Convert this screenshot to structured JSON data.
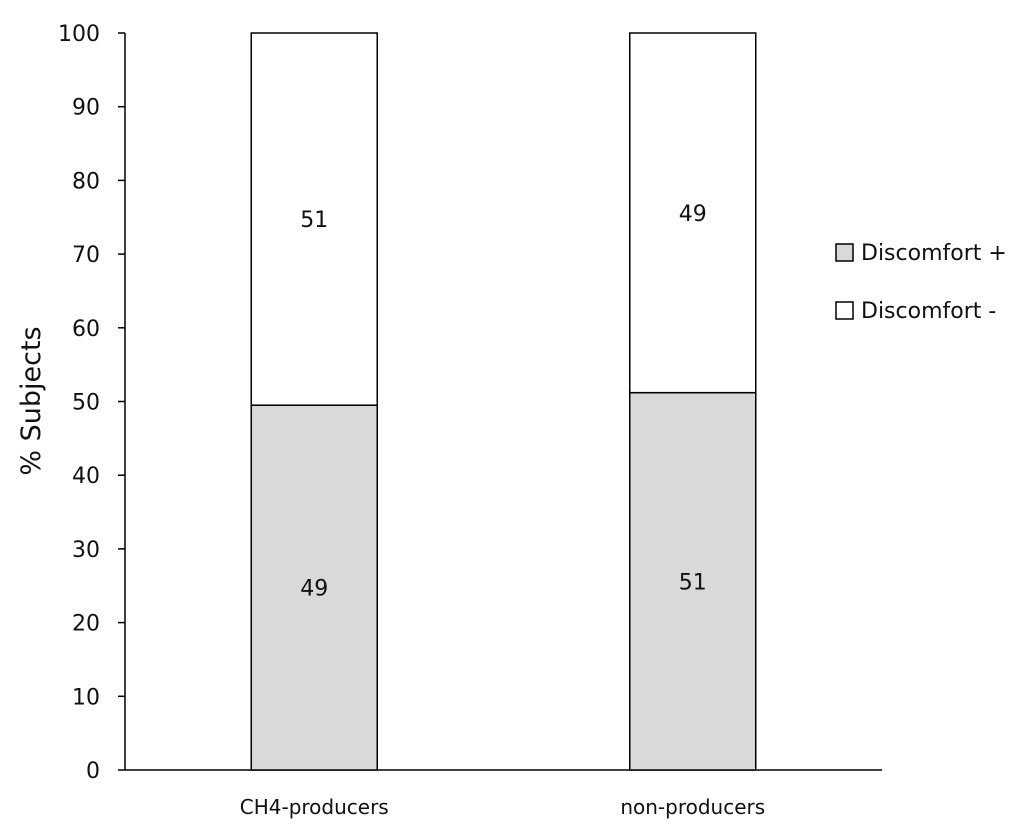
{
  "chart_data": {
    "type": "bar",
    "stacked": true,
    "categories": [
      "CH4-producers",
      "non-producers"
    ],
    "series": [
      {
        "name": "Discomfort +",
        "values": [
          49.5,
          51.2
        ],
        "labels": [
          "49",
          "51"
        ],
        "color": "#d9d9d9"
      },
      {
        "name": "Discomfort -",
        "values": [
          50.5,
          48.8
        ],
        "labels": [
          "51",
          "49"
        ],
        "color": "#ffffff"
      }
    ],
    "ylabel": "% Subjects",
    "ylim": [
      0,
      100
    ],
    "yticks": [
      "0",
      "10",
      "20",
      "30",
      "40",
      "50",
      "60",
      "70",
      "80",
      "90",
      "100"
    ],
    "grid": false,
    "legend_position": "right"
  }
}
